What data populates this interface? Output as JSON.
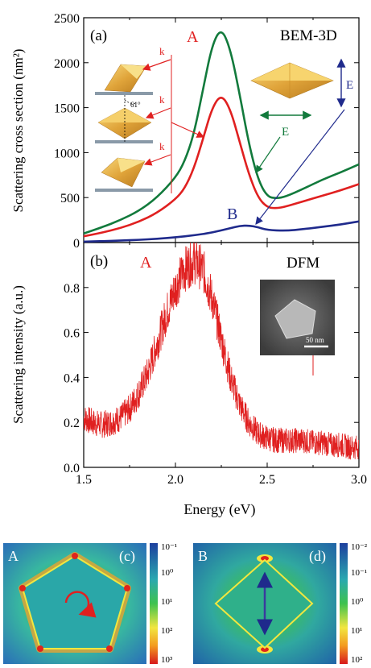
{
  "panels": {
    "a": {
      "tag": "(a)",
      "method": "BEM-3D",
      "ylabel": "Scattering cross section (nm²)",
      "k_label": "k",
      "angle_label": "61°",
      "e_label": "E",
      "peak_a": "A",
      "peak_b": "B"
    },
    "b": {
      "tag": "(b)",
      "method": "DFM",
      "ylabel": "Scattering intensity (a.u.)",
      "peak_a": "A",
      "scale_bar": "50 nm"
    },
    "xlabel": "Energy (eV)",
    "c": {
      "tag": "(c)",
      "mode": "A",
      "cbar_ticks": [
        "10⁻¹",
        "10⁰",
        "10¹",
        "10²",
        "10³"
      ]
    },
    "d": {
      "tag": "(d)",
      "mode": "B",
      "cbar_ticks": [
        "10⁻²",
        "10⁻¹",
        "10⁰",
        "10¹",
        "10²"
      ]
    }
  },
  "colors": {
    "green": "#127a3c",
    "red": "#e02020",
    "blue": "#1f2a8c",
    "gold": "#d9a030"
  },
  "chart_data": [
    {
      "type": "line",
      "panel": "a",
      "xlabel": "",
      "ylabel": "Scattering cross section (nm²)",
      "xlim": [
        1.5,
        3.0
      ],
      "ylim": [
        0,
        2500
      ],
      "xticks": [],
      "yticks": [
        0,
        500,
        1000,
        1500,
        2000,
        2500
      ],
      "series": [
        {
          "color": "#127a3c",
          "x": [
            1.5,
            1.6,
            1.7,
            1.8,
            1.9,
            2.0,
            2.05,
            2.1,
            2.15,
            2.2,
            2.25,
            2.3,
            2.35,
            2.4,
            2.45,
            2.5,
            2.55,
            2.6,
            2.7,
            2.8,
            2.9,
            3.0
          ],
          "y": [
            100,
            170,
            250,
            350,
            500,
            720,
            900,
            1200,
            1700,
            2200,
            2390,
            2150,
            1650,
            1100,
            700,
            510,
            490,
            510,
            600,
            700,
            780,
            870
          ]
        },
        {
          "color": "#e02020",
          "x": [
            1.5,
            1.6,
            1.7,
            1.8,
            1.9,
            2.0,
            2.05,
            2.1,
            2.15,
            2.2,
            2.25,
            2.3,
            2.35,
            2.4,
            2.45,
            2.5,
            2.55,
            2.6,
            2.7,
            2.8,
            2.9,
            3.0
          ],
          "y": [
            70,
            110,
            160,
            230,
            330,
            480,
            600,
            820,
            1150,
            1500,
            1650,
            1480,
            1120,
            760,
            500,
            390,
            380,
            400,
            460,
            520,
            580,
            650
          ]
        },
        {
          "color": "#1f2a8c",
          "x": [
            1.5,
            1.6,
            1.7,
            1.8,
            1.9,
            2.0,
            2.1,
            2.2,
            2.3,
            2.35,
            2.4,
            2.45,
            2.5,
            2.6,
            2.7,
            2.8,
            2.9,
            3.0
          ],
          "y": [
            10,
            15,
            22,
            30,
            42,
            58,
            80,
            110,
            160,
            185,
            190,
            170,
            140,
            130,
            150,
            175,
            200,
            235
          ]
        }
      ]
    },
    {
      "type": "line",
      "panel": "b",
      "xlabel": "Energy (eV)",
      "ylabel": "Scattering intensity (a.u.)",
      "xlim": [
        1.5,
        3.0
      ],
      "ylim": [
        0,
        1.0
      ],
      "xticks": [
        1.5,
        2.0,
        2.5,
        3.0
      ],
      "yticks": [
        0.0,
        0.2,
        0.4,
        0.6,
        0.8
      ],
      "series": [
        {
          "color": "#e02020",
          "x": [
            1.5,
            1.55,
            1.6,
            1.65,
            1.7,
            1.75,
            1.8,
            1.85,
            1.9,
            1.95,
            2.0,
            2.05,
            2.1,
            2.15,
            2.2,
            2.25,
            2.3,
            2.35,
            2.4,
            2.45,
            2.5,
            2.55,
            2.6,
            2.65,
            2.7,
            2.75,
            2.8,
            2.85,
            2.9,
            2.95,
            3.0
          ],
          "y": [
            0.22,
            0.2,
            0.19,
            0.2,
            0.22,
            0.26,
            0.33,
            0.42,
            0.55,
            0.68,
            0.8,
            0.88,
            0.92,
            0.88,
            0.75,
            0.57,
            0.4,
            0.28,
            0.2,
            0.15,
            0.13,
            0.12,
            0.12,
            0.12,
            0.12,
            0.11,
            0.11,
            0.1,
            0.1,
            0.09,
            0.09
          ]
        }
      ]
    }
  ]
}
